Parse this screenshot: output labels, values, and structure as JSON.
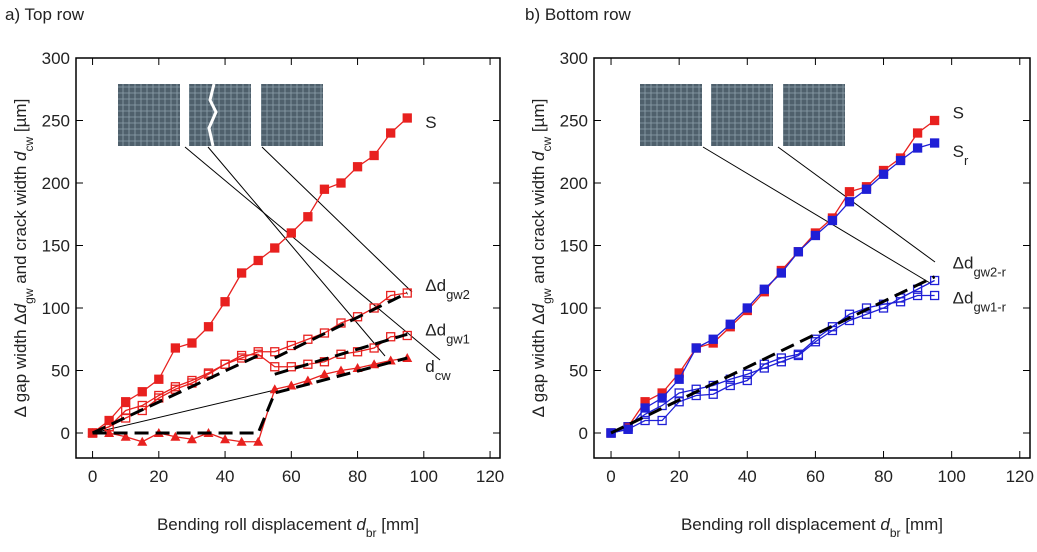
{
  "chart_data": [
    {
      "type": "line",
      "title": "a) Top row",
      "xlabel": [
        {
          "text": "Bending roll displacement "
        },
        {
          "text": "d",
          "style": "italic"
        },
        {
          "text": "br",
          "style": "sub"
        },
        {
          "text": " [mm]"
        }
      ],
      "ylabel": [
        {
          "text": "Δ gap width Δ"
        },
        {
          "text": "d",
          "style": "italic"
        },
        {
          "text": "gw",
          "style": "sub"
        },
        {
          "text": " and crack width "
        },
        {
          "text": "d",
          "style": "italic"
        },
        {
          "text": "cw",
          "style": "sub"
        },
        {
          "text": " [µm]"
        }
      ],
      "xlim": [
        -5,
        123
      ],
      "ylim": [
        -20,
        300
      ],
      "xticks": [
        0,
        20,
        40,
        60,
        80,
        100,
        120
      ],
      "yticks": [
        0,
        50,
        100,
        150,
        200,
        250,
        300
      ],
      "series": [
        {
          "name": "S",
          "color": "#e8211f",
          "marker": "square",
          "x": [
            0,
            5,
            10,
            15,
            20,
            25,
            30,
            35,
            40,
            45,
            50,
            55,
            60,
            65,
            70,
            75,
            80,
            85,
            90,
            95
          ],
          "values": [
            0,
            10,
            25,
            33,
            43,
            68,
            72,
            85,
            105,
            128,
            138,
            148,
            160,
            173,
            195,
            200,
            213,
            222,
            240,
            252
          ]
        },
        {
          "name": "Δd",
          "sub": "gw2",
          "color": "#e8211f",
          "marker": "open-square",
          "x": [
            0,
            5,
            10,
            15,
            20,
            25,
            30,
            35,
            40,
            45,
            50,
            55,
            60,
            65,
            70,
            75,
            80,
            85,
            90,
            95
          ],
          "values": [
            0,
            5,
            18,
            22,
            30,
            37,
            42,
            48,
            55,
            60,
            65,
            65,
            70,
            75,
            80,
            88,
            93,
            100,
            110,
            112
          ]
        },
        {
          "name": "Δd",
          "sub": "gw1",
          "color": "#e8211f",
          "marker": "open-square",
          "x": [
            0,
            5,
            10,
            15,
            20,
            25,
            30,
            35,
            40,
            45,
            50,
            55,
            60,
            65,
            70,
            75,
            80,
            85,
            90,
            95
          ],
          "values": [
            0,
            5,
            12,
            18,
            28,
            35,
            40,
            47,
            55,
            62,
            63,
            53,
            53,
            55,
            57,
            63,
            65,
            68,
            77,
            78
          ]
        },
        {
          "name": "d",
          "sub": "cw",
          "color": "#e8211f",
          "marker": "triangle",
          "x": [
            0,
            5,
            10,
            15,
            20,
            25,
            30,
            35,
            40,
            45,
            50,
            55,
            60,
            65,
            70,
            75,
            80,
            85,
            90,
            95
          ],
          "values": [
            0,
            0,
            -3,
            -7,
            0,
            -3,
            -5,
            0,
            -5,
            -7,
            -7,
            35,
            38,
            42,
            47,
            50,
            52,
            55,
            58,
            60
          ]
        },
        {
          "color": "#000000",
          "style": "dashed",
          "x": [
            0,
            50
          ],
          "values": [
            0,
            62
          ]
        },
        {
          "color": "#000000",
          "style": "dashed",
          "x": [
            55,
            95
          ],
          "values": [
            60,
            112
          ]
        },
        {
          "color": "#000000",
          "style": "dashed",
          "x": [
            55,
            95
          ],
          "values": [
            47,
            79
          ]
        },
        {
          "color": "#000000",
          "style": "dashed",
          "x": [
            0,
            50,
            55,
            95
          ],
          "values": [
            0,
            0,
            32,
            60
          ]
        }
      ]
    },
    {
      "type": "line",
      "title": "b) Bottom row",
      "xlabel": [
        {
          "text": "Bending roll displacement "
        },
        {
          "text": "d",
          "style": "italic"
        },
        {
          "text": "br",
          "style": "sub"
        },
        {
          "text": " [mm]"
        }
      ],
      "ylabel": [
        {
          "text": "Δ gap width Δ"
        },
        {
          "text": "d",
          "style": "italic"
        },
        {
          "text": "gw",
          "style": "sub"
        },
        {
          "text": " and crack width "
        },
        {
          "text": "d",
          "style": "italic"
        },
        {
          "text": "cw",
          "style": "sub"
        },
        {
          "text": " [µm]"
        }
      ],
      "xlim": [
        -5,
        123
      ],
      "ylim": [
        -20,
        300
      ],
      "xticks": [
        0,
        20,
        40,
        60,
        80,
        100,
        120
      ],
      "yticks": [
        0,
        50,
        100,
        150,
        200,
        250,
        300
      ],
      "series": [
        {
          "name": "S",
          "color": "#e8211f",
          "marker": "square",
          "x": [
            0,
            5,
            10,
            15,
            20,
            25,
            30,
            35,
            40,
            45,
            50,
            55,
            60,
            65,
            70,
            75,
            80,
            85,
            90,
            95
          ],
          "values": [
            0,
            5,
            25,
            32,
            48,
            68,
            72,
            85,
            98,
            113,
            130,
            145,
            160,
            172,
            193,
            197,
            210,
            220,
            240,
            250
          ]
        },
        {
          "name": "S",
          "sub": "r",
          "color": "#1f1fd6",
          "marker": "square",
          "x": [
            0,
            5,
            10,
            15,
            20,
            25,
            30,
            35,
            40,
            45,
            50,
            55,
            60,
            65,
            70,
            75,
            80,
            85,
            90,
            95
          ],
          "values": [
            0,
            3,
            20,
            28,
            43,
            68,
            75,
            87,
            100,
            115,
            128,
            145,
            158,
            170,
            185,
            195,
            207,
            218,
            228,
            232
          ]
        },
        {
          "name": "Δd",
          "sub": "gw2-r",
          "color": "#1f1fd6",
          "marker": "open-square",
          "x": [
            0,
            5,
            10,
            15,
            20,
            25,
            30,
            35,
            40,
            45,
            50,
            55,
            60,
            65,
            70,
            75,
            80,
            85,
            90,
            95
          ],
          "values": [
            0,
            5,
            15,
            22,
            32,
            35,
            38,
            43,
            47,
            52,
            57,
            62,
            73,
            82,
            90,
            95,
            100,
            108,
            115,
            122
          ]
        },
        {
          "name": "Δd",
          "sub": "gw1-r",
          "color": "#1f1fd6",
          "marker": "open-square",
          "x": [
            0,
            5,
            10,
            15,
            20,
            25,
            30,
            35,
            40,
            45,
            50,
            55,
            60,
            65,
            70,
            75,
            80,
            85,
            90,
            95
          ],
          "values": [
            0,
            3,
            10,
            10,
            25,
            30,
            31,
            38,
            42,
            55,
            60,
            63,
            75,
            85,
            95,
            100,
            103,
            105,
            110,
            110
          ]
        },
        {
          "color": "#000000",
          "style": "dashed",
          "x": [
            0,
            95
          ],
          "values": [
            0,
            125
          ]
        }
      ]
    }
  ]
}
